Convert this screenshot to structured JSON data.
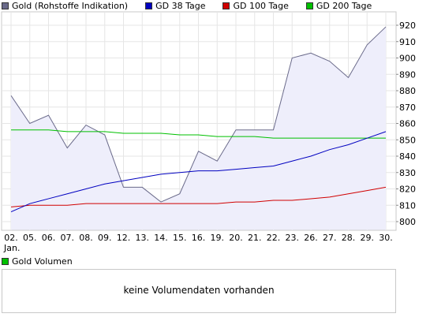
{
  "legend": {
    "items": [
      {
        "label": "Gold (Rohstoffe Indikation)",
        "color": "#6a6a8a"
      },
      {
        "label": "GD 38 Tage",
        "color": "#0000c0"
      },
      {
        "label": "GD 100 Tage",
        "color": "#d00000"
      },
      {
        "label": "GD 200 Tage",
        "color": "#00c000"
      }
    ]
  },
  "volume": {
    "legend_label": "Gold Volumen",
    "legend_color": "#00c000",
    "message": "keine Volumendaten vorhanden"
  },
  "chart_data": {
    "type": "line",
    "x": [
      "02.",
      "05.",
      "06.",
      "07.",
      "08.",
      "09.",
      "12.",
      "13.",
      "14.",
      "15.",
      "16.",
      "19.",
      "20.",
      "21.",
      "22.",
      "23.",
      "26.",
      "27.",
      "28.",
      "29.",
      "30."
    ],
    "x_sublabel": "Jan.",
    "ylim": [
      795,
      925
    ],
    "yticks": [
      800,
      810,
      820,
      830,
      840,
      850,
      860,
      870,
      880,
      890,
      900,
      910,
      920
    ],
    "grid": true,
    "series": [
      {
        "name": "Gold (Rohstoffe Indikation)",
        "color": "#6a6a8a",
        "fill": "#eeeefb",
        "values": [
          877,
          860,
          865,
          845,
          859,
          853,
          821,
          821,
          812,
          817,
          843,
          837,
          856,
          856,
          856,
          900,
          903,
          898,
          888,
          908,
          919
        ]
      },
      {
        "name": "GD 38 Tage",
        "color": "#0000c0",
        "values": [
          806,
          811,
          814,
          817,
          820,
          823,
          825,
          827,
          829,
          830,
          831,
          831,
          832,
          833,
          834,
          837,
          840,
          844,
          847,
          851,
          855
        ]
      },
      {
        "name": "GD 100 Tage",
        "color": "#d00000",
        "values": [
          809,
          810,
          810,
          810,
          811,
          811,
          811,
          811,
          811,
          811,
          811,
          811,
          812,
          812,
          813,
          813,
          814,
          815,
          817,
          819,
          821
        ]
      },
      {
        "name": "GD 200 Tage",
        "color": "#00c000",
        "values": [
          856,
          856,
          856,
          855,
          855,
          855,
          854,
          854,
          854,
          853,
          853,
          852,
          852,
          852,
          851,
          851,
          851,
          851,
          851,
          851,
          851
        ]
      }
    ]
  }
}
